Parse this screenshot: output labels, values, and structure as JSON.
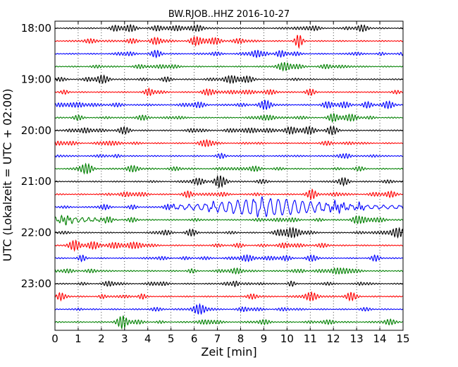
{
  "chart_data": {
    "type": "line",
    "title": "BW.RJOB..HHZ 2016-10-27",
    "xlabel": "Zeit  [min]",
    "ylabel": "UTC (Lokalzeit = UTC + 02:00)",
    "xlim": [
      0,
      15
    ],
    "x_ticks": [
      "0",
      "1",
      "2",
      "3",
      "4",
      "5",
      "6",
      "7",
      "8",
      "9",
      "10",
      "11",
      "12",
      "13",
      "14",
      "15"
    ],
    "y_tick_labels": [
      "18:00",
      "19:00",
      "20:00",
      "21:00",
      "22:00",
      "23:00"
    ],
    "y_tick_hours": [
      18,
      19,
      20,
      21,
      22,
      23
    ],
    "trace_start_times": [
      "18:00",
      "18:15",
      "18:30",
      "18:45",
      "19:00",
      "19:15",
      "19:30",
      "19:45",
      "20:00",
      "20:15",
      "20:30",
      "20:45",
      "21:00",
      "21:15",
      "21:30",
      "21:45",
      "22:00",
      "22:15",
      "22:30",
      "22:45",
      "23:00",
      "23:15",
      "23:30",
      "23:45"
    ],
    "trace_minutes_per_line": 15,
    "colors": [
      "#000000",
      "#ff0000",
      "#0000ff",
      "#008000"
    ],
    "vertical_grid": "dotted",
    "events": [
      {
        "trace": "21:30",
        "description": "large-amplitude oscillation",
        "start_min": 5,
        "peak_min": 9.2,
        "end_min": 15
      },
      {
        "trace": "21:45",
        "description": "elevated amplitude",
        "start_min": 0,
        "end_min": 3
      }
    ]
  }
}
